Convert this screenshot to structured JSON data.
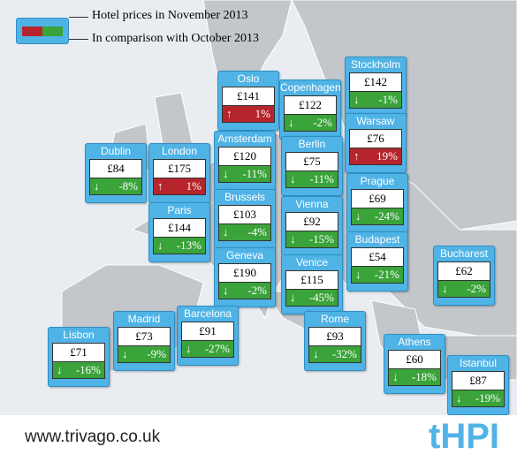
{
  "legend": {
    "line1": "Hotel prices in November 2013",
    "line2": "In comparison with October 2013"
  },
  "cities": [
    {
      "name": "Oslo",
      "price": "£141",
      "change": "1%",
      "trend": "up"
    },
    {
      "name": "Copenhagen",
      "price": "£122",
      "change": "-2%",
      "trend": "down"
    },
    {
      "name": "Stockholm",
      "price": "£142",
      "change": "-1%",
      "trend": "down"
    },
    {
      "name": "Warsaw",
      "price": "£76",
      "change": "19%",
      "trend": "up"
    },
    {
      "name": "Dublin",
      "price": "£84",
      "change": "-8%",
      "trend": "down"
    },
    {
      "name": "London",
      "price": "£175",
      "change": "1%",
      "trend": "up"
    },
    {
      "name": "Amsterdam",
      "price": "£120",
      "change": "-11%",
      "trend": "down"
    },
    {
      "name": "Berlin",
      "price": "£75",
      "change": "-11%",
      "trend": "down"
    },
    {
      "name": "Paris",
      "price": "£144",
      "change": "-13%",
      "trend": "down"
    },
    {
      "name": "Brussels",
      "price": "£103",
      "change": "-4%",
      "trend": "down"
    },
    {
      "name": "Vienna",
      "price": "£92",
      "change": "-15%",
      "trend": "down"
    },
    {
      "name": "Prague",
      "price": "£69",
      "change": "-24%",
      "trend": "down"
    },
    {
      "name": "Budapest",
      "price": "£54",
      "change": "-21%",
      "trend": "down"
    },
    {
      "name": "Bucharest",
      "price": "£62",
      "change": "-2%",
      "trend": "down"
    },
    {
      "name": "Geneva",
      "price": "£190",
      "change": "-2%",
      "trend": "down"
    },
    {
      "name": "Venice",
      "price": "£115",
      "change": "-45%",
      "trend": "down"
    },
    {
      "name": "Barcelona",
      "price": "£91",
      "change": "-27%",
      "trend": "down"
    },
    {
      "name": "Madrid",
      "price": "£73",
      "change": "-9%",
      "trend": "down"
    },
    {
      "name": "Lisbon",
      "price": "£71",
      "change": "-16%",
      "trend": "down"
    },
    {
      "name": "Rome",
      "price": "£93",
      "change": "-32%",
      "trend": "down"
    },
    {
      "name": "Athens",
      "price": "£60",
      "change": "-18%",
      "trend": "down"
    },
    {
      "name": "Istanbul",
      "price": "£87",
      "change": "-19%",
      "trend": "down"
    }
  ],
  "footer": {
    "url": "www.trivago.co.uk",
    "brand": "tHPI"
  }
}
